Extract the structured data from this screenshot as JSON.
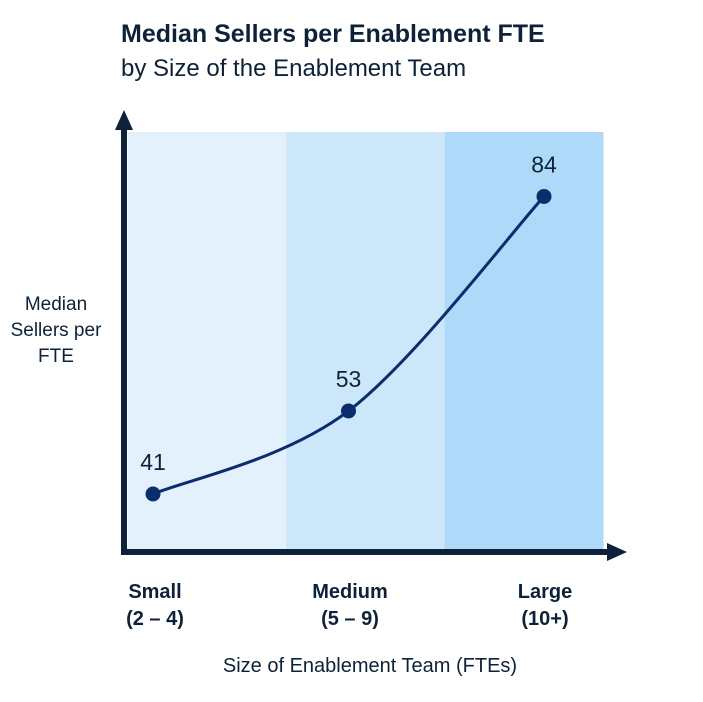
{
  "chart_data": {
    "type": "line",
    "title": "Median Sellers per Enablement FTE",
    "subtitle": "by Size of the Enablement Team",
    "xlabel": "Size of Enablement Team (FTEs)",
    "ylabel": "Median Sellers per FTE",
    "categories": [
      {
        "name": "Small",
        "range": "(2 – 4)"
      },
      {
        "name": "Medium",
        "range": "(5 – 9)"
      },
      {
        "name": "Large",
        "range": "(10+)"
      }
    ],
    "values": [
      41,
      53,
      84
    ],
    "grid": false,
    "colors": {
      "line": "#0a2d6e",
      "axis": "#0d2238",
      "bands": [
        "#e3f1fd",
        "#cce6fa",
        "#aed9f8"
      ]
    }
  }
}
